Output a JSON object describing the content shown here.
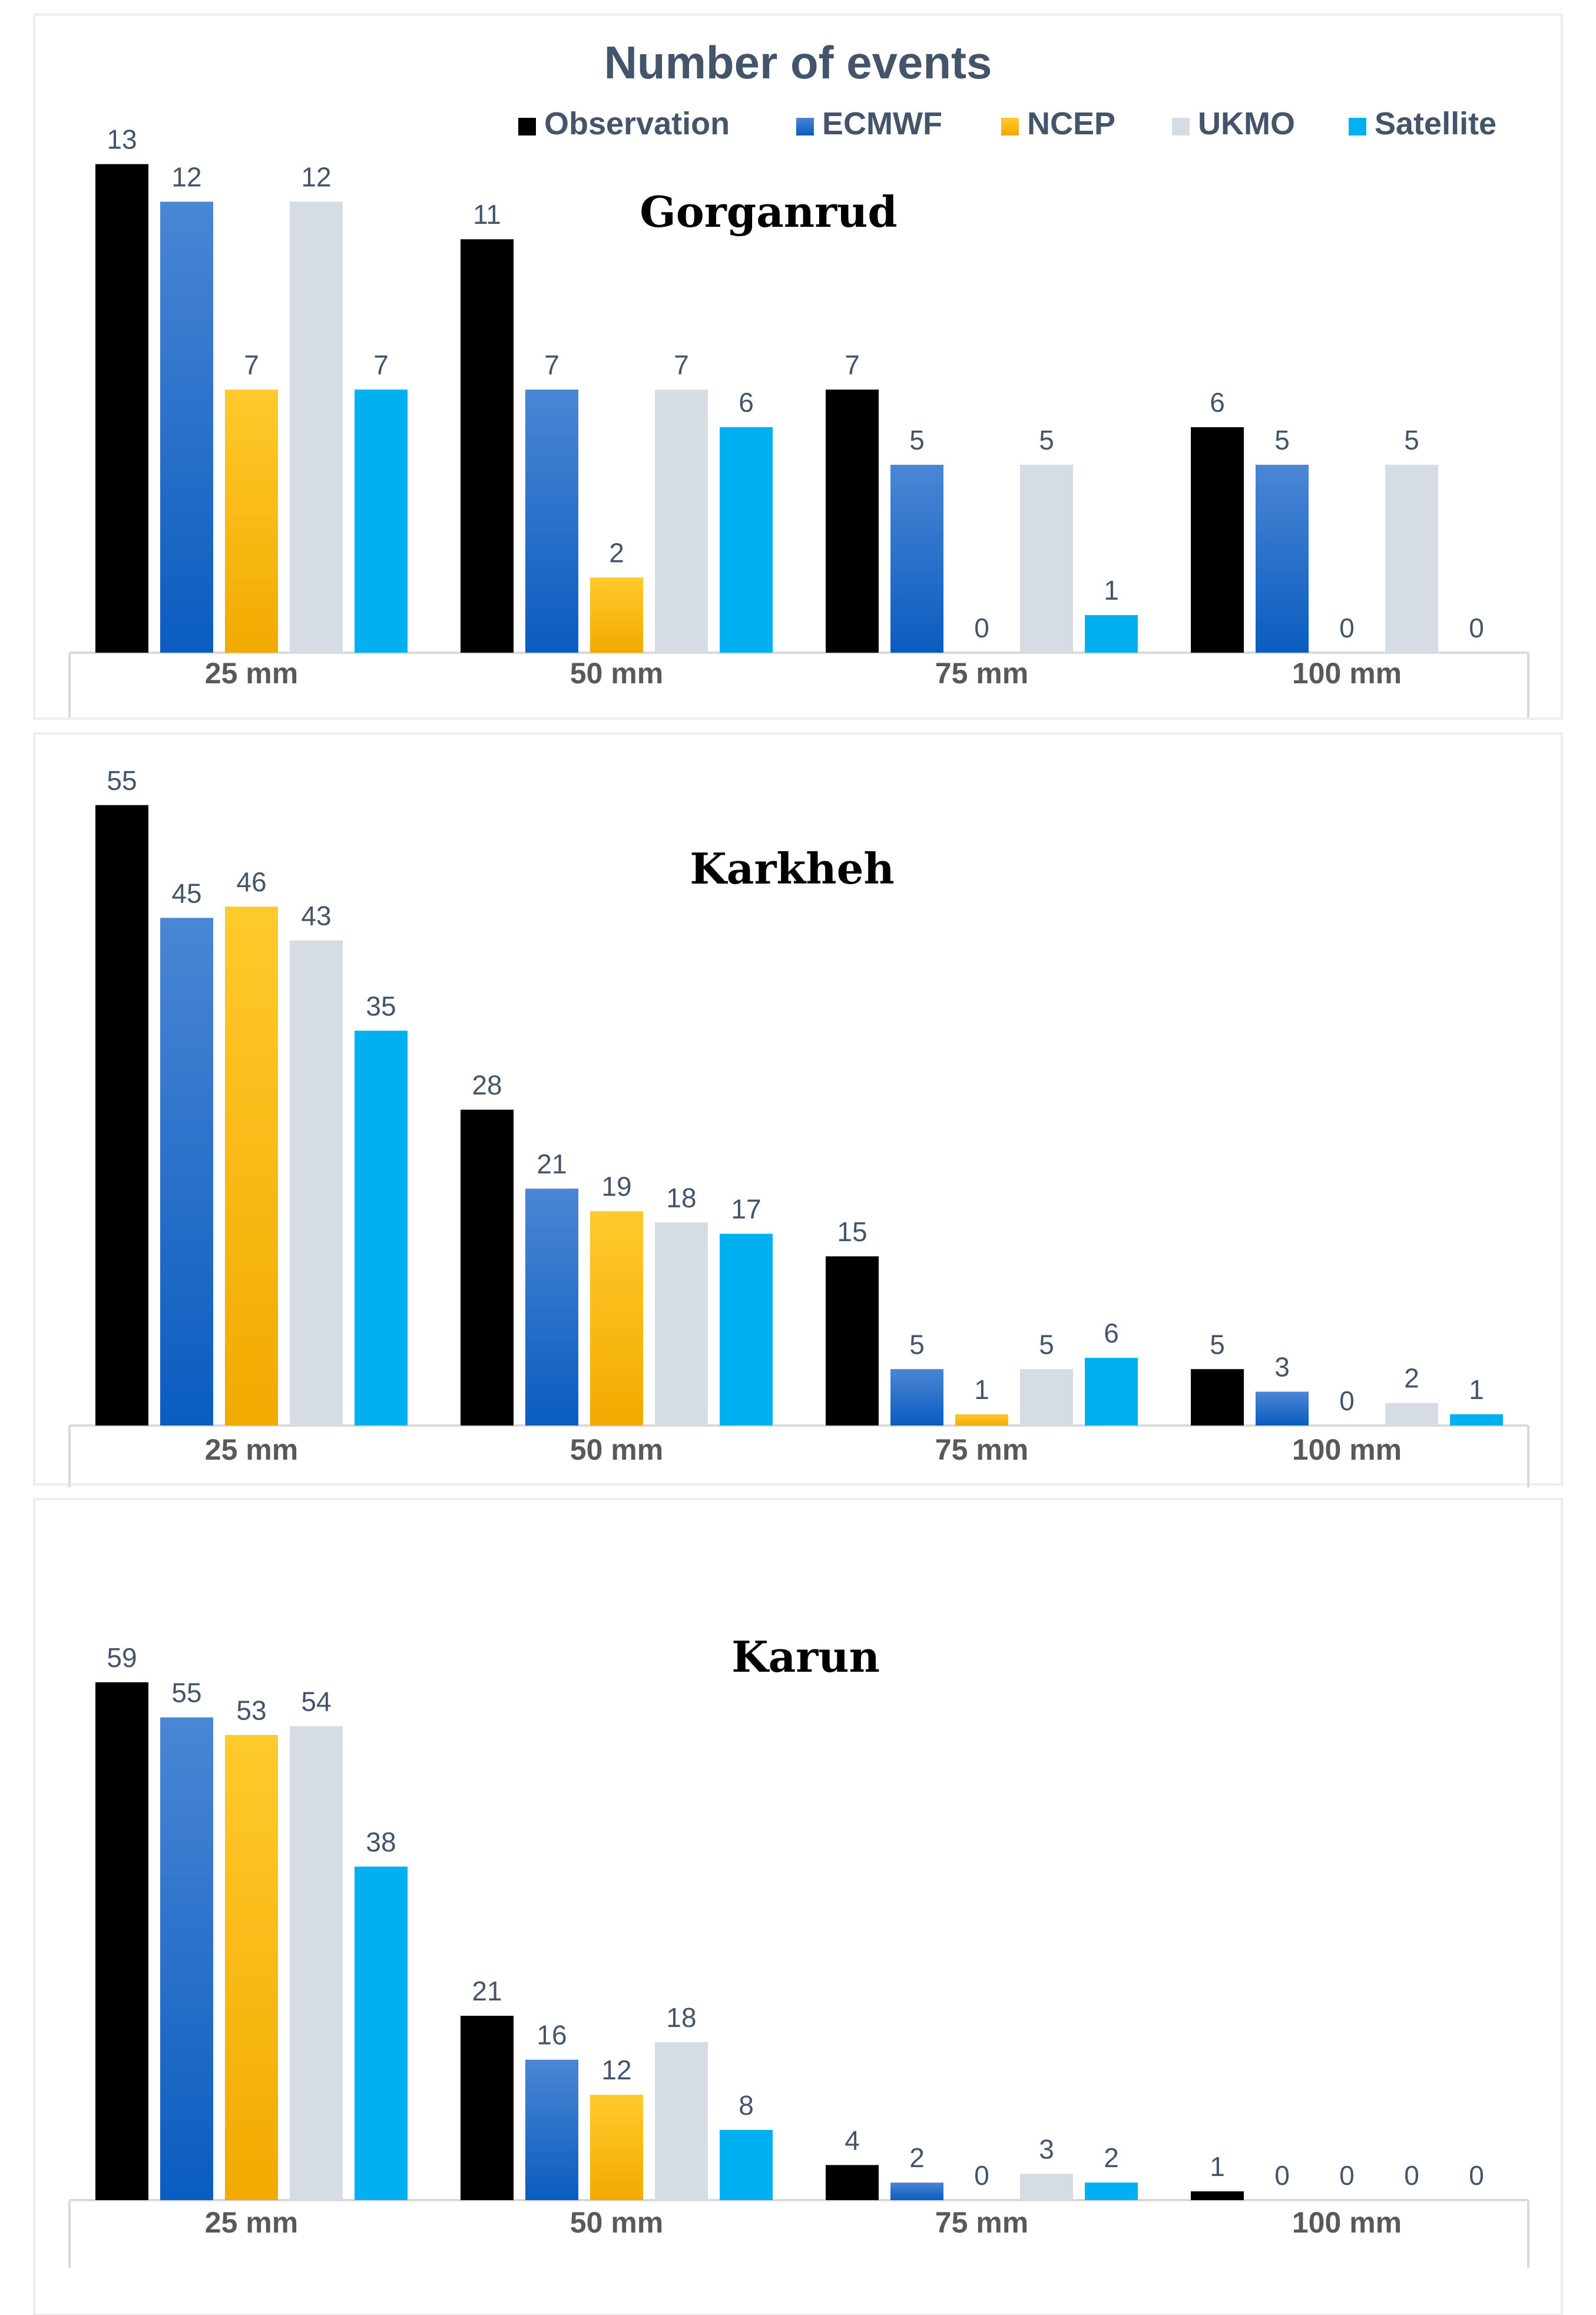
{
  "title": "Number of events",
  "legend": [
    {
      "name": "Observation",
      "color": "#000000"
    },
    {
      "name": "ECMWF",
      "color": "#1565c0"
    },
    {
      "name": "NCEP",
      "color": "#ffc000"
    },
    {
      "name": "UKMO",
      "color": "#d6dce4"
    },
    {
      "name": "Satellite",
      "color": "#00b0f0"
    }
  ],
  "chart_data": [
    {
      "type": "bar",
      "title": "Gorganrud",
      "categories": [
        "25 mm",
        "50 mm",
        "75 mm",
        "100 mm"
      ],
      "series": [
        {
          "name": "Observation",
          "values": [
            13,
            11,
            7,
            6
          ]
        },
        {
          "name": "ECMWF",
          "values": [
            12,
            7,
            5,
            5
          ]
        },
        {
          "name": "NCEP",
          "values": [
            7,
            2,
            0,
            0
          ]
        },
        {
          "name": "UKMO",
          "values": [
            12,
            7,
            5,
            5
          ]
        },
        {
          "name": "Satellite",
          "values": [
            7,
            6,
            1,
            0
          ]
        }
      ],
      "ylim": [
        0,
        13
      ]
    },
    {
      "type": "bar",
      "title": "Karkheh",
      "categories": [
        "25 mm",
        "50 mm",
        "75 mm",
        "100 mm"
      ],
      "series": [
        {
          "name": "Observation",
          "values": [
            55,
            28,
            15,
            5
          ]
        },
        {
          "name": "ECMWF",
          "values": [
            45,
            21,
            5,
            3
          ]
        },
        {
          "name": "NCEP",
          "values": [
            46,
            19,
            1,
            0
          ]
        },
        {
          "name": "UKMO",
          "values": [
            43,
            18,
            5,
            2
          ]
        },
        {
          "name": "Satellite",
          "values": [
            35,
            17,
            6,
            1
          ]
        }
      ],
      "ylim": [
        0,
        55
      ]
    },
    {
      "type": "bar",
      "title": "Karun",
      "categories": [
        "25 mm",
        "50 mm",
        "75 mm",
        "100 mm"
      ],
      "series": [
        {
          "name": "Observation",
          "values": [
            59,
            21,
            4,
            1
          ]
        },
        {
          "name": "ECMWF",
          "values": [
            55,
            16,
            2,
            0
          ]
        },
        {
          "name": "NCEP",
          "values": [
            53,
            12,
            0,
            0
          ]
        },
        {
          "name": "UKMO",
          "values": [
            54,
            18,
            3,
            0
          ]
        },
        {
          "name": "Satellite",
          "values": [
            38,
            8,
            2,
            0
          ]
        }
      ],
      "ylim": [
        0,
        59
      ]
    }
  ]
}
